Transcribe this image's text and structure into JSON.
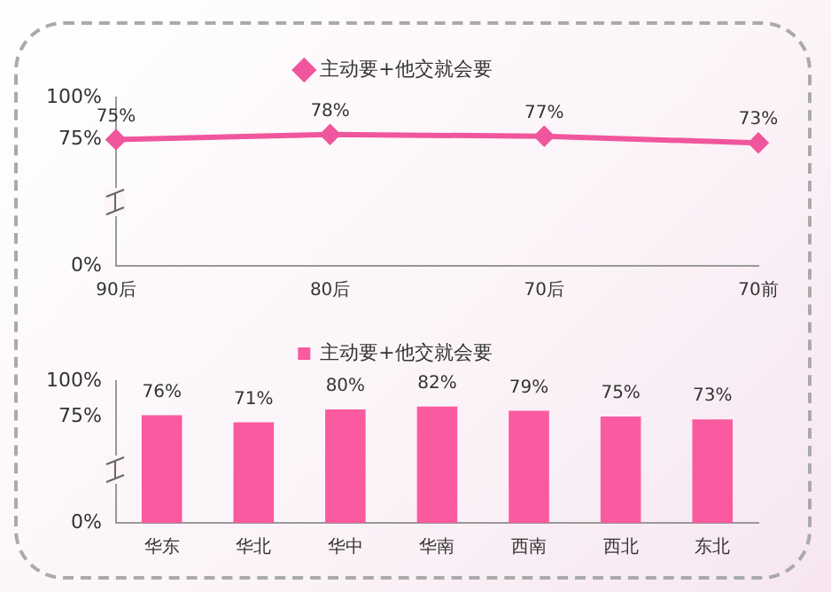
{
  "chart_data": [
    {
      "type": "line",
      "categories": [
        "90后",
        "80后",
        "70后",
        "70前"
      ],
      "series": [
        {
          "name": "主动要+他交就会要",
          "color": "#f0569c",
          "values": [
            75,
            78,
            77,
            73
          ],
          "value_labels": [
            "75%",
            "78%",
            "77%",
            "73%"
          ]
        }
      ],
      "ylim": [
        0,
        100
      ],
      "yticks": [
        {
          "value": 0,
          "label": "0%"
        },
        {
          "value": 75,
          "label": "75%"
        },
        {
          "value": 100,
          "label": "100%"
        }
      ],
      "grid": false,
      "legend": "top",
      "marker": "diamond",
      "line_style": "solid"
    },
    {
      "type": "bar",
      "categories": [
        "华东",
        "华北",
        "华中",
        "华南",
        "西南",
        "西北",
        "东北"
      ],
      "series": [
        {
          "name": "主动要+他交就会要",
          "color": "#fa5aa0",
          "values": [
            76,
            71,
            80,
            82,
            79,
            75,
            73
          ],
          "value_labels": [
            "76%",
            "71%",
            "80%",
            "82%",
            "79%",
            "75%",
            "73%"
          ]
        }
      ],
      "ylim": [
        0,
        100
      ],
      "yticks": [
        {
          "value": 0,
          "label": "0%"
        },
        {
          "value": 75,
          "label": "75%"
        },
        {
          "value": 100,
          "label": "100%"
        }
      ],
      "grid": false,
      "legend": "top"
    }
  ]
}
